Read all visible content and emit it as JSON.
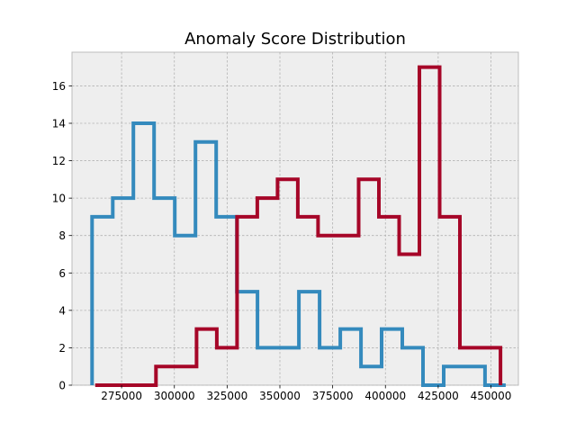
{
  "chart_data": {
    "type": "histogram-step",
    "title": "Anomaly Score Distribution",
    "xlabel": "",
    "ylabel": "",
    "xlim": [
      251500,
      463000
    ],
    "ylim": [
      0,
      17.8
    ],
    "x_ticks": [
      275000,
      300000,
      325000,
      350000,
      375000,
      400000,
      425000,
      450000
    ],
    "x_tick_labels": [
      "275000",
      "300000",
      "325000",
      "350000",
      "375000",
      "400000",
      "425000",
      "450000"
    ],
    "y_ticks": [
      0,
      2,
      4,
      6,
      8,
      10,
      12,
      14,
      16
    ],
    "y_tick_labels": [
      "0",
      "2",
      "4",
      "6",
      "8",
      "10",
      "12",
      "14",
      "16"
    ],
    "grid": true,
    "legend": "none",
    "series": [
      {
        "color": "#348ABD",
        "bin_edges": [
          261000,
          270800,
          280600,
          290400,
          300200,
          310000,
          319800,
          329600,
          339400,
          349200,
          359000,
          368800,
          378600,
          388400,
          398200,
          408000,
          417800,
          427600,
          437400,
          447200,
          457000
        ],
        "counts": [
          9,
          10,
          14,
          10,
          8,
          13,
          9,
          5,
          2,
          2,
          5,
          2,
          3,
          1,
          3,
          2,
          0,
          1,
          1,
          0
        ]
      },
      {
        "color": "#A60628",
        "bin_edges": [
          262500,
          272100,
          281700,
          291300,
          300900,
          310500,
          320100,
          329700,
          339300,
          348900,
          358500,
          368100,
          377700,
          387300,
          396900,
          406500,
          416100,
          425700,
          435300,
          444900,
          454500
        ],
        "counts": [
          0,
          0,
          0,
          1,
          1,
          3,
          2,
          9,
          10,
          11,
          9,
          8,
          8,
          11,
          9,
          7,
          17,
          9,
          2,
          2
        ]
      }
    ]
  }
}
